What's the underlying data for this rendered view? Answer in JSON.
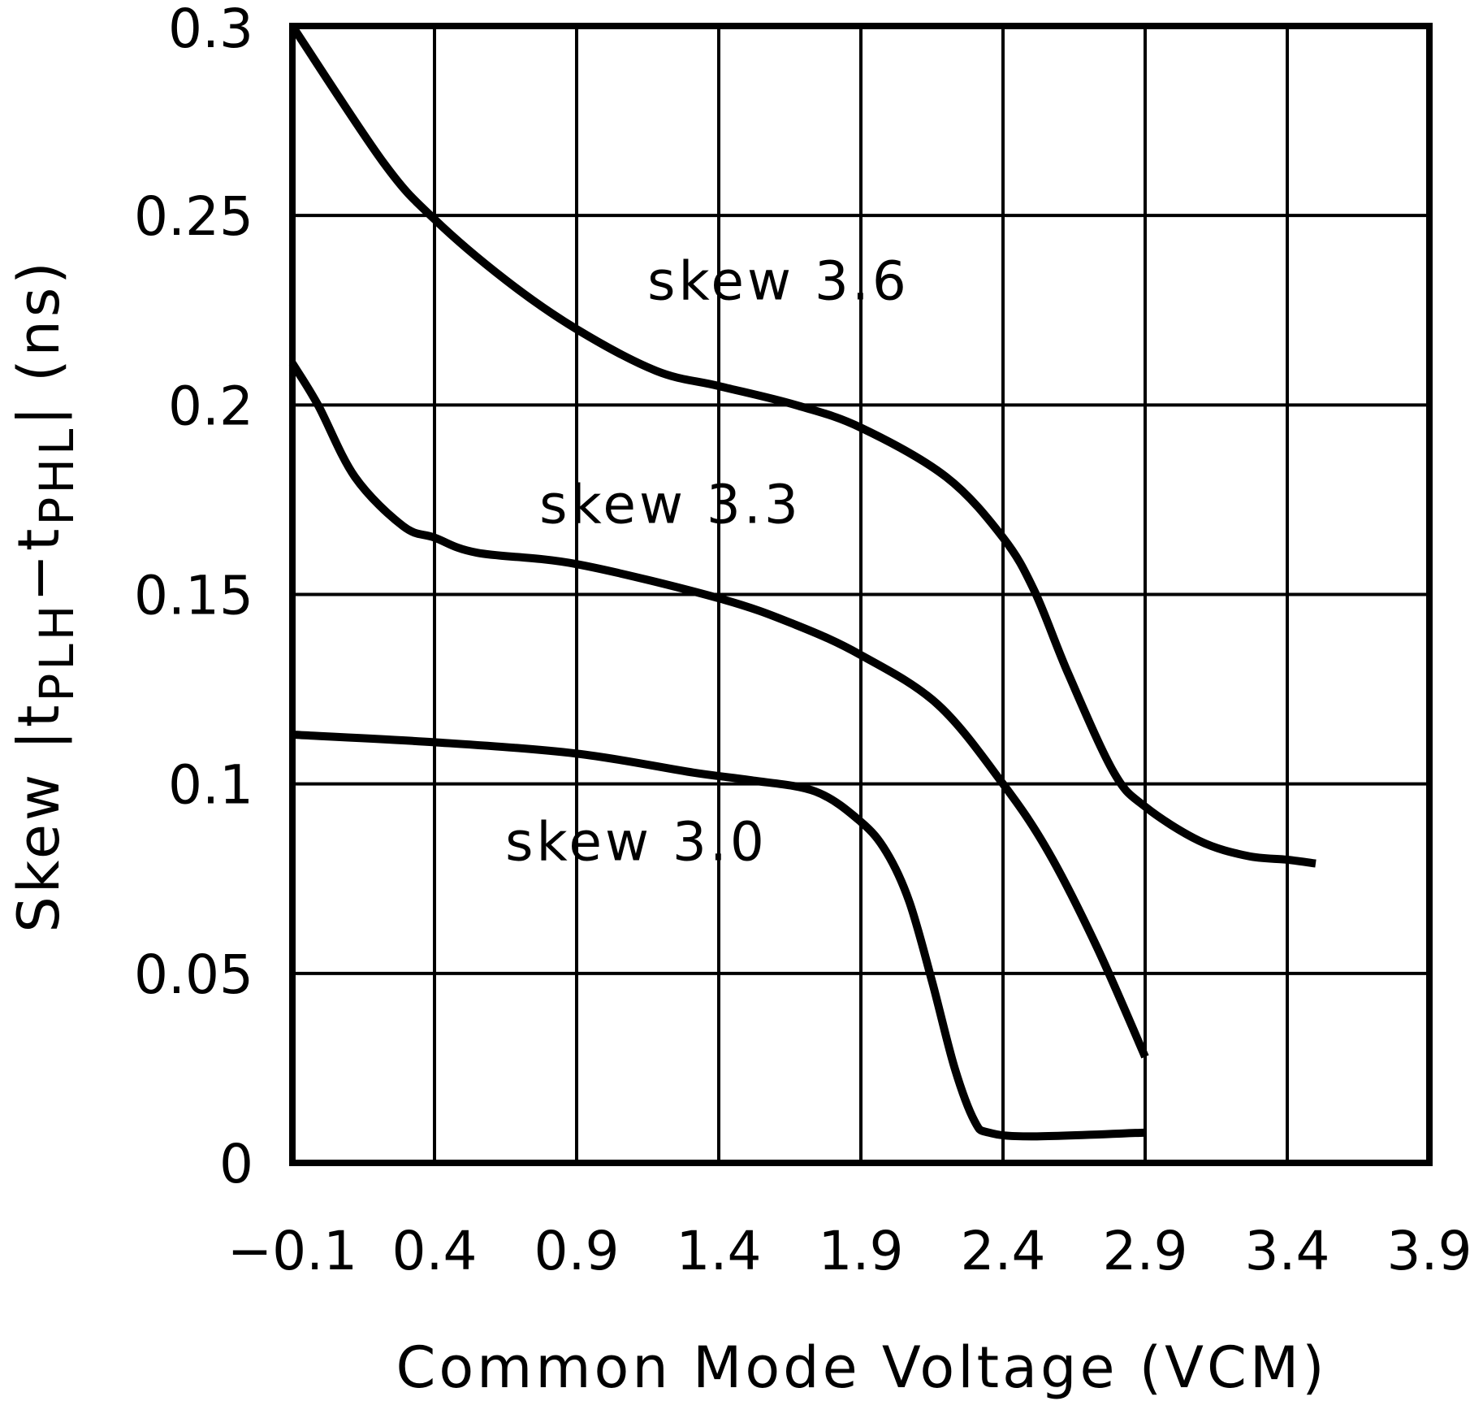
{
  "chart_data": {
    "type": "line",
    "title": "",
    "xlabel": "Common Mode Voltage (VCM)",
    "ylabel": "Skew |tPLH-tPHL| (ns)",
    "ylabel_parts": [
      {
        "text": "Skew |t",
        "sub": false
      },
      {
        "text": "PLH",
        "sub": true
      },
      {
        "text": "−t",
        "sub": false
      },
      {
        "text": "PHL",
        "sub": true
      },
      {
        "text": "| (ns)",
        "sub": false
      }
    ],
    "xlim": [
      -0.1,
      3.9
    ],
    "ylim": [
      0,
      0.3
    ],
    "xticks": [
      -0.1,
      0.4,
      0.9,
      1.4,
      1.9,
      2.4,
      2.9,
      3.4,
      3.9
    ],
    "xtick_labels": [
      "−0.1",
      "0.4",
      "0.9",
      "1.4",
      "1.9",
      "2.4",
      "2.9",
      "3.4",
      "3.9"
    ],
    "yticks": [
      0,
      0.05,
      0.1,
      0.15,
      0.2,
      0.25,
      0.3
    ],
    "ytick_labels": [
      "0",
      "0.05",
      "0.1",
      "0.15",
      "0.2",
      "0.25",
      "0.3"
    ],
    "grid": true,
    "legend": "none (inline labels)",
    "line_color": "#000000",
    "series": [
      {
        "name": "skew 3.6",
        "label_at": [
          1.61,
          0.233
        ],
        "x": [
          -0.1,
          0.22,
          0.4,
          0.65,
          0.9,
          1.18,
          1.4,
          1.67,
          1.9,
          2.2,
          2.4,
          2.51,
          2.63,
          2.79,
          2.9,
          3.09,
          3.26,
          3.4,
          3.5
        ],
        "y": [
          0.3,
          0.264,
          0.249,
          0.233,
          0.22,
          0.209,
          0.205,
          0.2,
          0.194,
          0.181,
          0.165,
          0.151,
          0.129,
          0.103,
          0.094,
          0.085,
          0.081,
          0.08,
          0.079
        ]
      },
      {
        "name": "skew 3.3",
        "label_at": [
          1.23,
          0.174
        ],
        "x": [
          -0.1,
          -0.01,
          0.12,
          0.29,
          0.4,
          0.55,
          0.9,
          1.4,
          1.67,
          1.9,
          2.17,
          2.4,
          2.56,
          2.73,
          2.9
        ],
        "y": [
          0.211,
          0.2,
          0.181,
          0.168,
          0.165,
          0.161,
          0.158,
          0.149,
          0.142,
          0.134,
          0.121,
          0.1,
          0.082,
          0.057,
          0.028
        ]
      },
      {
        "name": "skew 3.0",
        "label_at": [
          1.11,
          0.085
        ],
        "x": [
          -0.1,
          0.4,
          0.9,
          1.31,
          1.51,
          1.74,
          1.9,
          1.99,
          2.07,
          2.15,
          2.23,
          2.3,
          2.35,
          2.5,
          2.9
        ],
        "y": [
          0.113,
          0.111,
          0.108,
          0.103,
          0.101,
          0.098,
          0.09,
          0.082,
          0.069,
          0.048,
          0.025,
          0.011,
          0.008,
          0.007,
          0.008
        ]
      }
    ]
  }
}
